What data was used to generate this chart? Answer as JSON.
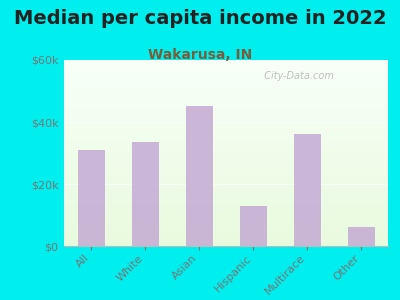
{
  "title": "Median per capita income in 2022",
  "subtitle": "Wakarusa, IN",
  "categories": [
    "All",
    "White",
    "Asian",
    "Hispanic",
    "Multirace",
    "Other"
  ],
  "values": [
    31000,
    33500,
    45000,
    13000,
    36000,
    6000
  ],
  "bar_color": "#c4aad4",
  "background_outer": "#00eeee",
  "ylim": [
    0,
    60000
  ],
  "yticks": [
    0,
    20000,
    40000,
    60000
  ],
  "ytick_labels": [
    "$0",
    "$20k",
    "$40k",
    "$60k"
  ],
  "title_fontsize": 14,
  "subtitle_fontsize": 10,
  "title_color": "#222222",
  "subtitle_color": "#7a5c3a",
  "tick_label_color": "#777777",
  "watermark_text": "  City-Data.com",
  "bar_width": 0.5
}
